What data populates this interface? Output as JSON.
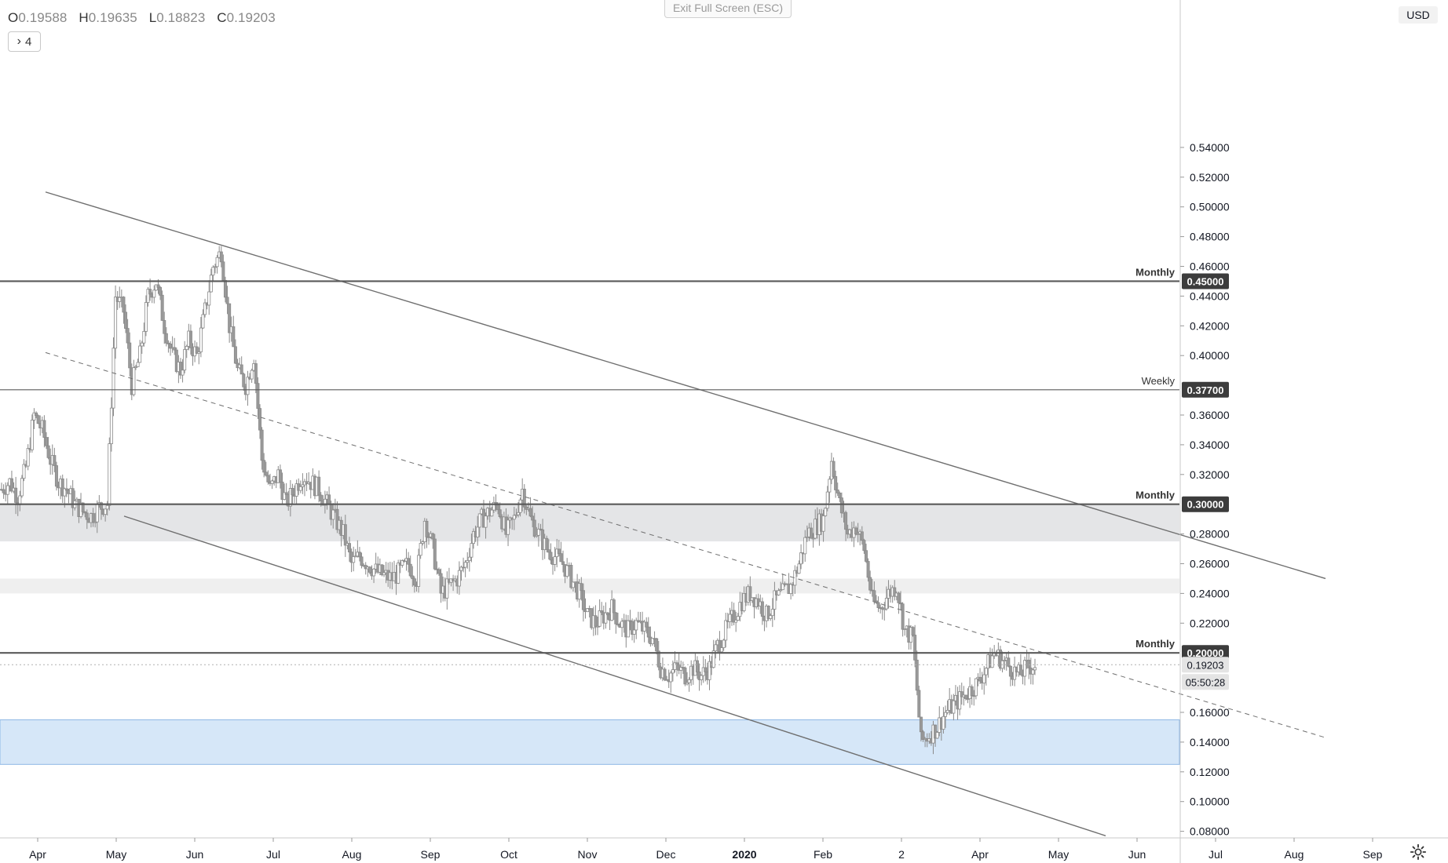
{
  "header": {
    "ohlc": [
      {
        "label": "O",
        "value": "0.19588"
      },
      {
        "label": "H",
        "value": "0.19635"
      },
      {
        "label": "L",
        "value": "0.18823"
      },
      {
        "label": "C",
        "value": "0.19203"
      }
    ],
    "indicators_count": "4",
    "exit_fullscreen_label": "Exit Full Screen (ESC)",
    "currency": "USD"
  },
  "chart_data": {
    "type": "candlestick",
    "y_axis": {
      "range": [
        0.08,
        0.545
      ],
      "ticks": [
        "0.54000",
        "0.52000",
        "0.50000",
        "0.48000",
        "0.46000",
        "0.44000",
        "0.42000",
        "0.40000",
        "0.36000",
        "0.34000",
        "0.32000",
        "0.28000",
        "0.26000",
        "0.24000",
        "0.22000",
        "0.16000",
        "0.14000",
        "0.12000",
        "0.10000",
        "0.08000"
      ],
      "tick_values": [
        0.54,
        0.52,
        0.5,
        0.48,
        0.46,
        0.44,
        0.42,
        0.4,
        0.36,
        0.34,
        0.32,
        0.28,
        0.26,
        0.24,
        0.22,
        0.16,
        0.14,
        0.12,
        0.1,
        0.08
      ]
    },
    "x_axis": {
      "labels": [
        "Apr",
        "May",
        "Jun",
        "Jul",
        "Aug",
        "Sep",
        "Oct",
        "Nov",
        "Dec",
        "2020",
        "Feb",
        "2",
        "Apr",
        "May",
        "Jun",
        "Jul",
        "Aug",
        "Sep"
      ],
      "positions": [
        0,
        1,
        2,
        3,
        4,
        5,
        6,
        7,
        8,
        9,
        10,
        11,
        12,
        13,
        14,
        15,
        16,
        17
      ],
      "bold_index": 9
    },
    "levels": [
      {
        "label": "Monthly",
        "value": 0.45,
        "badge": "0.45000",
        "style": "thick"
      },
      {
        "label": "Weekly",
        "value": 0.377,
        "badge": "0.37700",
        "style": "thin"
      },
      {
        "label": "Monthly",
        "value": 0.3,
        "badge": "0.30000",
        "style": "thick"
      },
      {
        "label": "Monthly",
        "value": 0.2,
        "badge": "0.20000",
        "style": "thick"
      }
    ],
    "last_price": {
      "value": 0.19203,
      "label": "0.19203",
      "countdown": "05:50:28"
    },
    "zones": [
      {
        "from": 0.275,
        "to": 0.3,
        "color": "#e4e5e7",
        "x_end": 15.5
      },
      {
        "from": 0.24,
        "to": 0.25,
        "color": "#efefef",
        "x_end": 15.5
      },
      {
        "from": 0.125,
        "to": 0.155,
        "color": "#d6e7f8",
        "x_end": 17.2
      }
    ],
    "trendlines": [
      {
        "points": [
          [
            0.1,
            0.51
          ],
          [
            16.4,
            0.25
          ]
        ],
        "style": "solid"
      },
      {
        "points": [
          [
            0.1,
            0.402
          ],
          [
            16.4,
            0.143
          ]
        ],
        "style": "dashed"
      },
      {
        "points": [
          [
            1.1,
            0.292
          ],
          [
            13.6,
            0.077
          ]
        ],
        "style": "solid"
      }
    ],
    "candles_weekly_closes": [
      0.31,
      0.315,
      0.305,
      0.325,
      0.36,
      0.35,
      0.33,
      0.315,
      0.31,
      0.3,
      0.295,
      0.292,
      0.298,
      0.3,
      0.44,
      0.43,
      0.38,
      0.4,
      0.44,
      0.45,
      0.42,
      0.4,
      0.39,
      0.41,
      0.4,
      0.43,
      0.46,
      0.47,
      0.42,
      0.39,
      0.38,
      0.4,
      0.33,
      0.31,
      0.32,
      0.3,
      0.31,
      0.32,
      0.315,
      0.31,
      0.3,
      0.29,
      0.28,
      0.26,
      0.265,
      0.26,
      0.255,
      0.252,
      0.25,
      0.255,
      0.26,
      0.25,
      0.29,
      0.27,
      0.24,
      0.245,
      0.25,
      0.26,
      0.28,
      0.29,
      0.295,
      0.3,
      0.28,
      0.29,
      0.31,
      0.29,
      0.28,
      0.27,
      0.265,
      0.26,
      0.25,
      0.24,
      0.225,
      0.22,
      0.225,
      0.23,
      0.22,
      0.215,
      0.22,
      0.215,
      0.21,
      0.19,
      0.185,
      0.19,
      0.185,
      0.19,
      0.185,
      0.19,
      0.205,
      0.215,
      0.225,
      0.235,
      0.24,
      0.235,
      0.225,
      0.235,
      0.24,
      0.245,
      0.26,
      0.28,
      0.285,
      0.29,
      0.33,
      0.3,
      0.28,
      0.285,
      0.27,
      0.235,
      0.23,
      0.24,
      0.245,
      0.215,
      0.21,
      0.14,
      0.145,
      0.15,
      0.16,
      0.165,
      0.17,
      0.175,
      0.18,
      0.19,
      0.2,
      0.195,
      0.19,
      0.185,
      0.19,
      0.192
    ]
  }
}
